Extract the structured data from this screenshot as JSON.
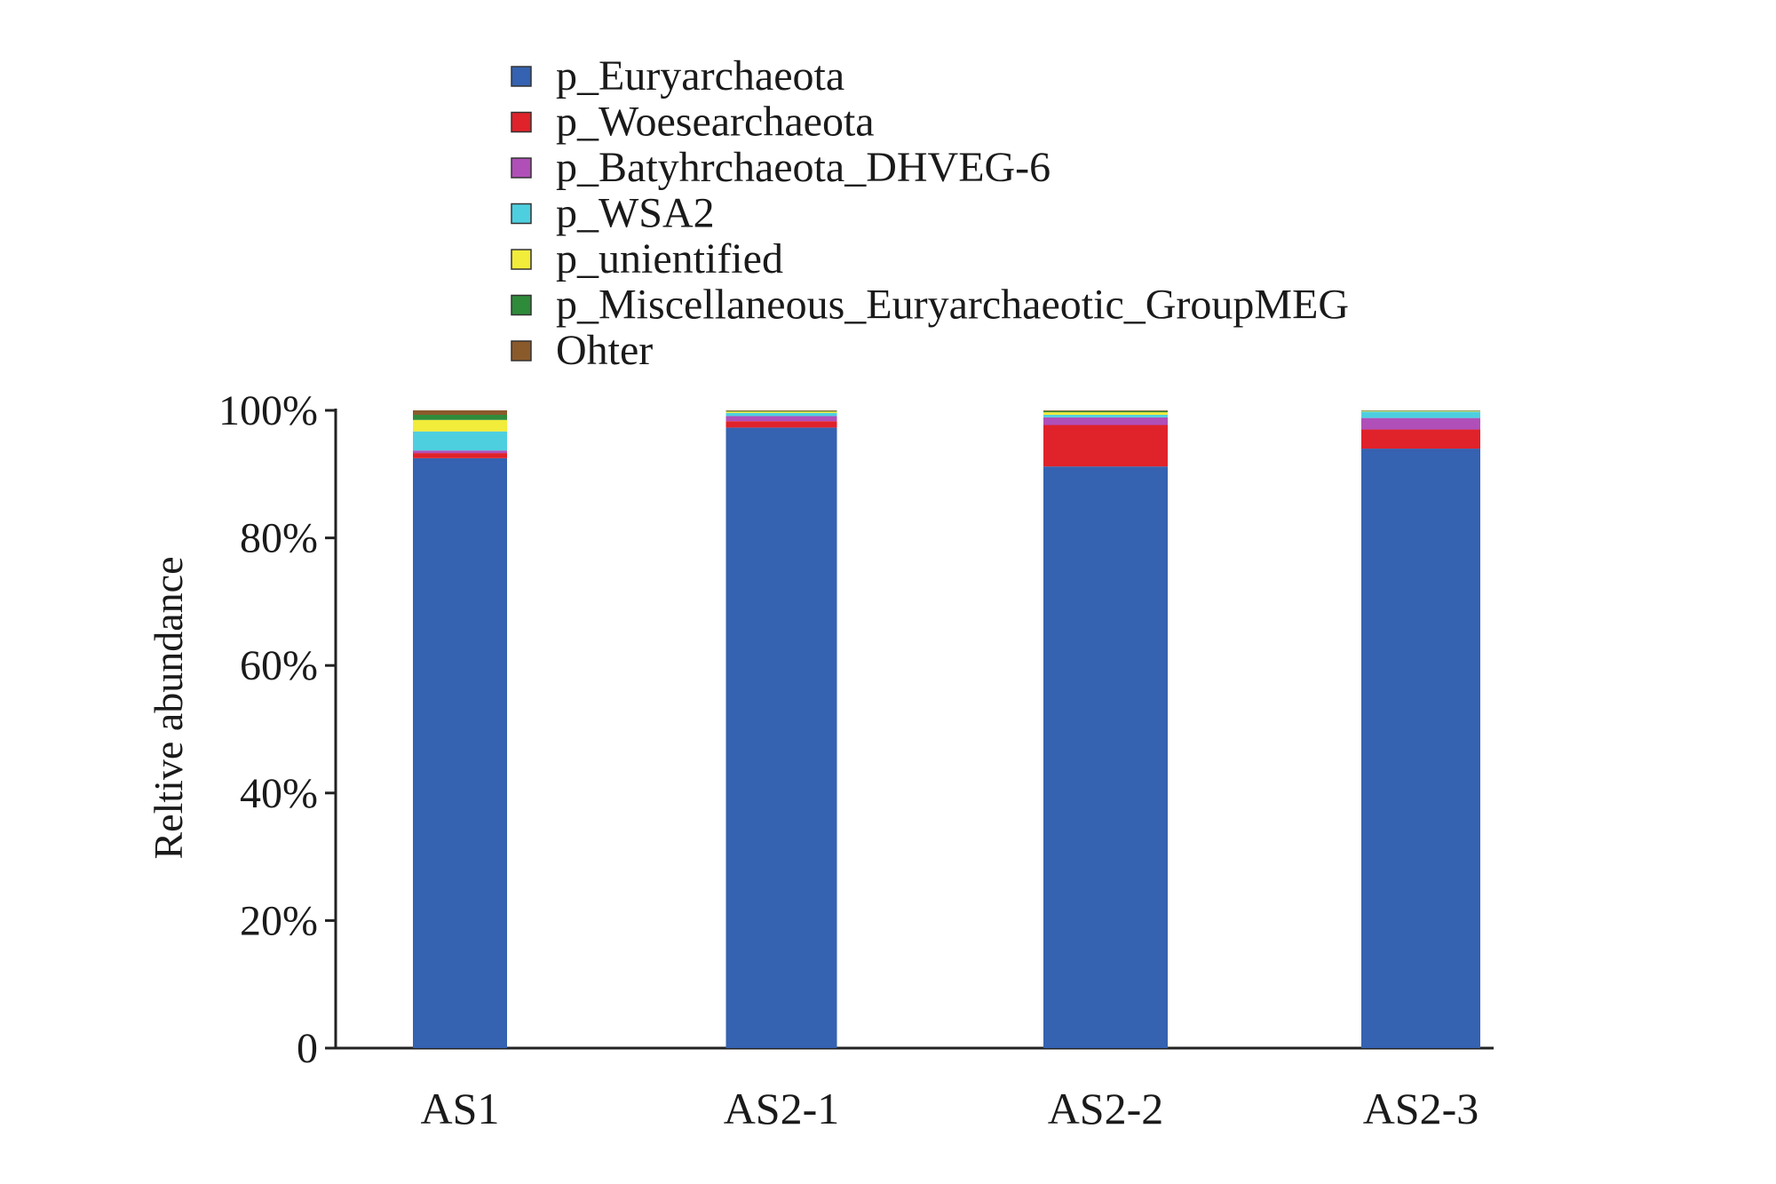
{
  "chart_data": {
    "type": "bar",
    "stacked": true,
    "title": "",
    "xlabel": "",
    "ylabel": "Reltive abundance",
    "ylim": [
      0,
      100
    ],
    "y_tick_labels": [
      "0",
      "20%",
      "40%",
      "60%",
      "80%",
      "100%"
    ],
    "y_ticks": [
      0,
      20,
      40,
      60,
      80,
      100
    ],
    "grid": false,
    "legend_position": "top",
    "categories": [
      "AS1",
      "AS2-1",
      "AS2-2",
      "AS2-3"
    ],
    "series": [
      {
        "name": "p_Euryarchaeota",
        "color": "#3562b1",
        "values": [
          92.5,
          97.3,
          91.2,
          94.0
        ]
      },
      {
        "name": "p_Woesearchaeota",
        "color": "#e0222a",
        "values": [
          0.8,
          1.0,
          6.5,
          3.0
        ]
      },
      {
        "name": "p_Batyhrchaeota_DHVEG-6",
        "color": "#b04fb8",
        "values": [
          0.4,
          0.8,
          1.2,
          1.8
        ]
      },
      {
        "name": "p_WSA2",
        "color": "#4ecfe0",
        "values": [
          3.0,
          0.5,
          0.4,
          1.0
        ]
      },
      {
        "name": "p_unientified",
        "color": "#f2ec3a",
        "values": [
          1.8,
          0.2,
          0.4,
          0.1
        ]
      },
      {
        "name": "p_Miscellaneous_Euryarchaeotic_GroupMEG",
        "color": "#2e8b3a",
        "values": [
          0.8,
          0.1,
          0.2,
          0.05
        ]
      },
      {
        "name": "Ohter",
        "color": "#8b5a2b",
        "values": [
          0.7,
          0.1,
          0.1,
          0.05
        ]
      }
    ]
  }
}
